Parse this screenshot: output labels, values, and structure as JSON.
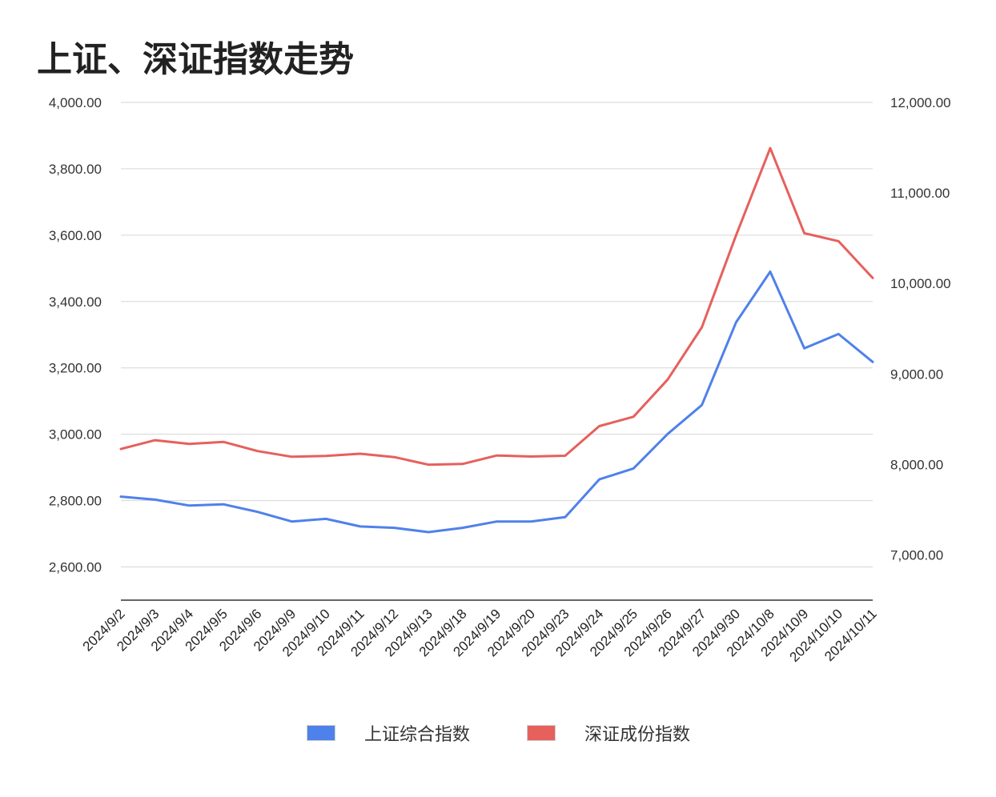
{
  "title": "上证、深证指数走势",
  "chart_data": {
    "type": "line",
    "title": "上证、深证指数走势",
    "categories": [
      "2024/9/2",
      "2024/9/3",
      "2024/9/4",
      "2024/9/5",
      "2024/9/6",
      "2024/9/9",
      "2024/9/10",
      "2024/9/11",
      "2024/9/12",
      "2024/9/13",
      "2024/9/18",
      "2024/9/19",
      "2024/9/20",
      "2024/9/23",
      "2024/9/24",
      "2024/9/25",
      "2024/9/26",
      "2024/9/27",
      "2024/9/30",
      "2024/10/8",
      "2024/10/9",
      "2024/10/10",
      "2024/10/11"
    ],
    "left_axis": {
      "ylim": [
        2500,
        4000
      ],
      "ticks": [
        2600,
        2800,
        3000,
        3200,
        3400,
        3600,
        3800,
        4000
      ],
      "tick_labels": [
        "2,600.00",
        "2,800.00",
        "3,000.00",
        "3,200.00",
        "3,400.00",
        "3,600.00",
        "3,800.00",
        "4,000.00"
      ]
    },
    "right_axis": {
      "ylim": [
        6500,
        12000
      ],
      "ticks": [
        7000,
        8000,
        9000,
        10000,
        11000,
        12000
      ],
      "tick_labels": [
        "7,000.00",
        "8,000.00",
        "9,000.00",
        "10,000.00",
        "11,000.00",
        "12,000.00"
      ]
    },
    "series": [
      {
        "name": "上证综合指数",
        "axis": "left",
        "color": "#4f81ea",
        "values": [
          2812,
          2803,
          2785,
          2789,
          2766,
          2737,
          2745,
          2722,
          2718,
          2705,
          2718,
          2737,
          2737,
          2750,
          2864,
          2897,
          3001,
          3088,
          3337,
          3490,
          3259,
          3302,
          3218
        ]
      },
      {
        "name": "深证成份指数",
        "axis": "right",
        "color": "#e6605c",
        "values": [
          8170,
          8268,
          8226,
          8249,
          8147,
          8085,
          8094,
          8118,
          8081,
          7997,
          8005,
          8099,
          8087,
          8096,
          8423,
          8527,
          8938,
          9515,
          10530,
          11495,
          10555,
          10467,
          10060
        ]
      }
    ],
    "grid": true,
    "legend_position": "bottom"
  },
  "legend": [
    {
      "label": "上证综合指数",
      "color": "#4f81ea"
    },
    {
      "label": "深证成份指数",
      "color": "#e6605c"
    }
  ]
}
